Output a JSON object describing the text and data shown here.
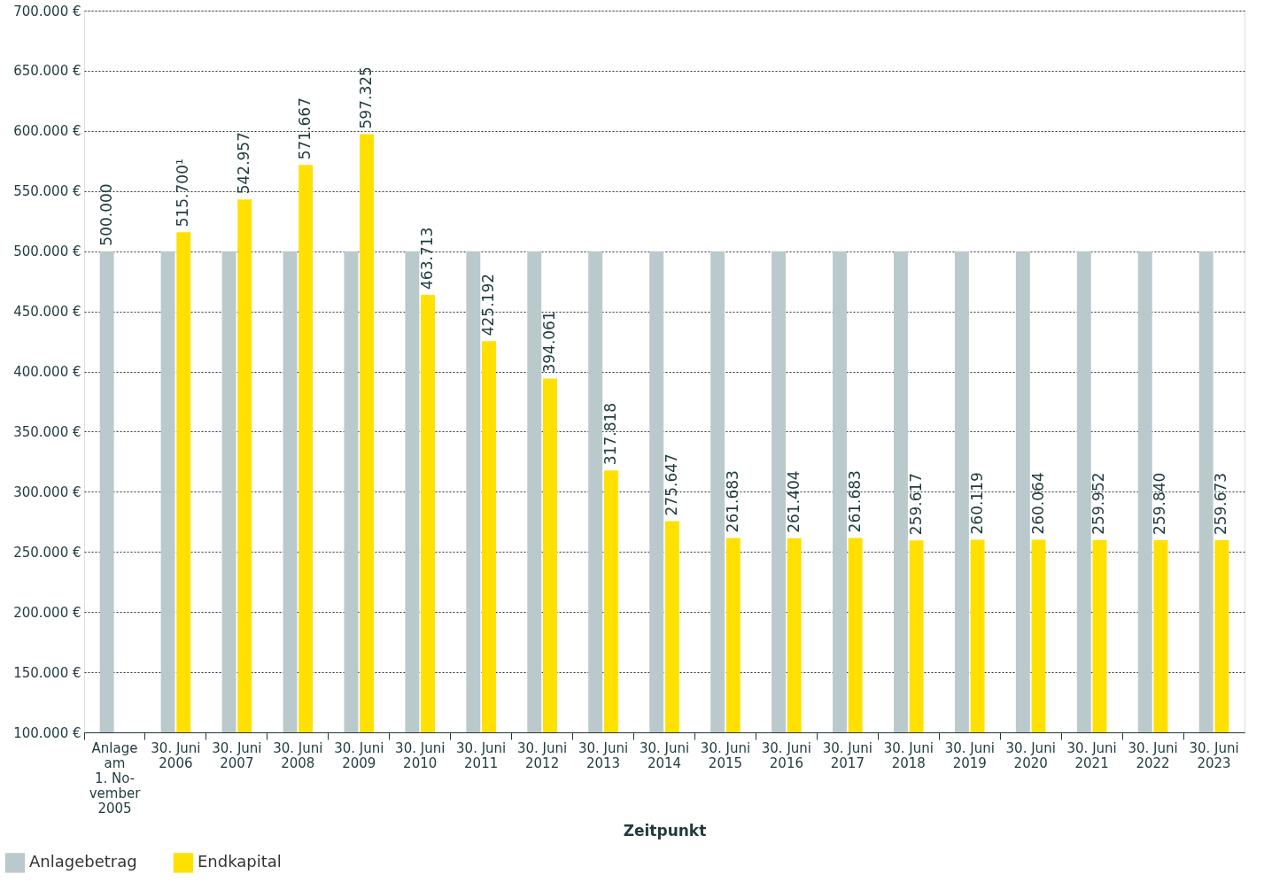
{
  "chart_data": {
    "type": "bar",
    "xlabel": "Zeitpunkt",
    "categories": [
      "Anlage\nam\n1. No-\nvember\n2005",
      "30. Juni\n2006",
      "30. Juni\n2007",
      "30. Juni\n2008",
      "30. Juni\n2009",
      "30. Juni\n2010",
      "30. Juni\n2011",
      "30. Juni\n2012",
      "30. Juni\n2013",
      "30. Juni\n2014",
      "30. Juni\n2015",
      "30. Juni\n2016",
      "30. Juni\n2017",
      "30. Juni\n2018",
      "30. Juni\n2019",
      "30. Juni\n2020",
      "30. Juni\n2021",
      "30. Juni\n2022",
      "30. Juni\n2023"
    ],
    "series": [
      {
        "name": "Anlagebetrag",
        "color": "#bac9cc",
        "values": [
          500000,
          500000,
          500000,
          500000,
          500000,
          500000,
          500000,
          500000,
          500000,
          500000,
          500000,
          500000,
          500000,
          500000,
          500000,
          500000,
          500000,
          500000,
          500000
        ],
        "value_labels": [
          "500.000",
          null,
          null,
          null,
          null,
          null,
          null,
          null,
          null,
          null,
          null,
          null,
          null,
          null,
          null,
          null,
          null,
          null,
          null
        ]
      },
      {
        "name": "Endkapital",
        "color": "#ffe000",
        "values": [
          null,
          515700,
          542957,
          571667,
          597325,
          463713,
          425192,
          394061,
          317818,
          275647,
          261683,
          261404,
          261683,
          259617,
          260119,
          260064,
          259952,
          259840,
          259673
        ],
        "value_labels": [
          null,
          "515.700¹",
          "542.957",
          "571.667",
          "597.325",
          "463.713",
          "425.192",
          "394.061",
          "317.818",
          "275.647",
          "261.683",
          "261.404",
          "261.683",
          "259.617",
          "260.119",
          "260.064",
          "259.952",
          "259.840",
          "259.673"
        ]
      }
    ],
    "ylim": [
      100000,
      700000
    ],
    "yticks": [
      {
        "value": 100000,
        "label": "100.000 €"
      },
      {
        "value": 150000,
        "label": "150.000 €"
      },
      {
        "value": 200000,
        "label": "200.000 €"
      },
      {
        "value": 250000,
        "label": "250.000 €"
      },
      {
        "value": 300000,
        "label": "300.000 €"
      },
      {
        "value": 350000,
        "label": "350.000 €"
      },
      {
        "value": 400000,
        "label": "400.000 €"
      },
      {
        "value": 450000,
        "label": "450.000 €"
      },
      {
        "value": 500000,
        "label": "500.000 €"
      },
      {
        "value": 550000,
        "label": "550.000 €"
      },
      {
        "value": 600000,
        "label": "600.000 €"
      },
      {
        "value": 650000,
        "label": "650.000 €"
      },
      {
        "value": 700000,
        "label": "700.000 €"
      }
    ],
    "grid": "y",
    "legend": "bottom left"
  }
}
